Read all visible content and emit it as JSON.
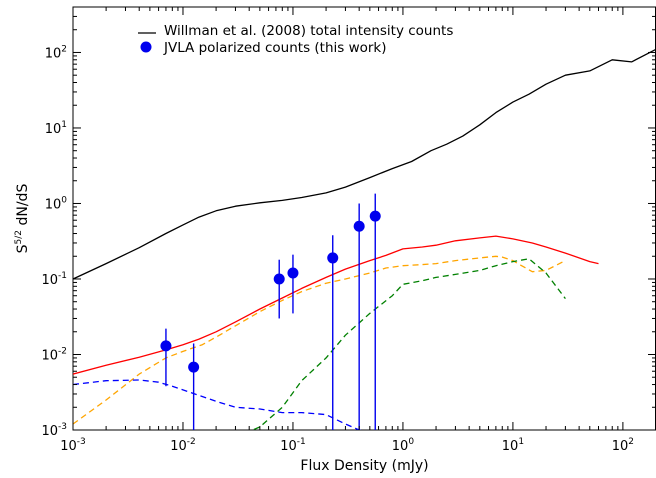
{
  "chart_data": {
    "type": "line",
    "xlabel": "Flux Density (mJy)",
    "ylabel_main": "S",
    "ylabel_sup": "5/2",
    "ylabel_rest": " dN/dS",
    "xscale": "log",
    "yscale": "log",
    "xlim": [
      0.001,
      200
    ],
    "ylim": [
      0.001,
      400
    ],
    "x_ticks": [
      {
        "value": 0.001,
        "mant": "10",
        "exp": "-3"
      },
      {
        "value": 0.01,
        "mant": "10",
        "exp": "-2"
      },
      {
        "value": 0.1,
        "mant": "10",
        "exp": "-1"
      },
      {
        "value": 1,
        "mant": "10",
        "exp": "0"
      },
      {
        "value": 10,
        "mant": "10",
        "exp": "1"
      },
      {
        "value": 100,
        "mant": "10",
        "exp": "2"
      }
    ],
    "y_ticks": [
      {
        "value": 0.001,
        "mant": "10",
        "exp": "-3"
      },
      {
        "value": 0.01,
        "mant": "10",
        "exp": "-2"
      },
      {
        "value": 0.1,
        "mant": "10",
        "exp": "-1"
      },
      {
        "value": 1,
        "mant": "10",
        "exp": "0"
      },
      {
        "value": 10,
        "mant": "10",
        "exp": "1"
      },
      {
        "value": 100,
        "mant": "10",
        "exp": "2"
      }
    ],
    "legend": [
      {
        "label": "Willman et al. (2008) total intensity counts",
        "marker": "line",
        "color": "#000000"
      },
      {
        "label": "JVLA polarized counts (this work)",
        "marker": "circle",
        "color": "#0000ee"
      }
    ],
    "series": [
      {
        "name": "Willman et al. (2008) total intensity counts",
        "color": "#000000",
        "style": "solid",
        "x": [
          0.001,
          0.002,
          0.004,
          0.007,
          0.01,
          0.014,
          0.02,
          0.03,
          0.05,
          0.08,
          0.12,
          0.2,
          0.3,
          0.5,
          0.8,
          1.2,
          1.8,
          2.5,
          3.5,
          5,
          7,
          10,
          14,
          20,
          30,
          50,
          80,
          120,
          200
        ],
        "y": [
          0.1,
          0.16,
          0.26,
          0.4,
          0.52,
          0.66,
          0.8,
          0.92,
          1.02,
          1.1,
          1.2,
          1.38,
          1.65,
          2.2,
          2.9,
          3.6,
          5,
          6.1,
          7.8,
          11,
          16,
          22,
          28,
          38,
          50,
          57,
          80,
          75,
          110
        ]
      },
      {
        "name": "red model",
        "color": "#ff0000",
        "style": "solid",
        "x": [
          0.001,
          0.002,
          0.004,
          0.007,
          0.01,
          0.014,
          0.02,
          0.03,
          0.05,
          0.08,
          0.12,
          0.2,
          0.3,
          0.5,
          0.7,
          1,
          1.5,
          2,
          3,
          5,
          7,
          10,
          15,
          20,
          30,
          50,
          60
        ],
        "y": [
          0.0055,
          0.0072,
          0.0092,
          0.0115,
          0.0135,
          0.016,
          0.02,
          0.027,
          0.04,
          0.056,
          0.075,
          0.105,
          0.135,
          0.175,
          0.205,
          0.25,
          0.265,
          0.28,
          0.32,
          0.35,
          0.37,
          0.34,
          0.3,
          0.265,
          0.22,
          0.17,
          0.16
        ]
      },
      {
        "name": "orange model",
        "color": "#ffa500",
        "style": "dashed",
        "x": [
          0.001,
          0.002,
          0.004,
          0.007,
          0.01,
          0.015,
          0.02,
          0.03,
          0.05,
          0.08,
          0.12,
          0.2,
          0.3,
          0.5,
          0.7,
          1,
          1.5,
          2,
          3,
          5,
          7,
          8,
          10,
          12,
          15,
          20,
          30
        ],
        "y": [
          0.0012,
          0.0025,
          0.0055,
          0.009,
          0.011,
          0.0135,
          0.017,
          0.024,
          0.037,
          0.052,
          0.068,
          0.088,
          0.1,
          0.12,
          0.14,
          0.15,
          0.155,
          0.16,
          0.175,
          0.19,
          0.2,
          0.195,
          0.175,
          0.15,
          0.125,
          0.13,
          0.175
        ]
      },
      {
        "name": "green model",
        "color": "#008000",
        "style": "dashed",
        "x": [
          0.03,
          0.05,
          0.08,
          0.12,
          0.2,
          0.3,
          0.5,
          0.8,
          1,
          1.5,
          2,
          3,
          5,
          7,
          10,
          14,
          20,
          30
        ],
        "y": [
          0.0008,
          0.0011,
          0.002,
          0.0045,
          0.009,
          0.018,
          0.035,
          0.06,
          0.085,
          0.095,
          0.105,
          0.115,
          0.13,
          0.15,
          0.17,
          0.185,
          0.12,
          0.055
        ]
      },
      {
        "name": "blue model",
        "color": "#0000ff",
        "style": "dashed",
        "x": [
          0.001,
          0.002,
          0.004,
          0.006,
          0.008,
          0.012,
          0.02,
          0.03,
          0.05,
          0.08,
          0.12,
          0.2,
          0.3,
          0.4,
          0.5
        ],
        "y": [
          0.004,
          0.0045,
          0.0046,
          0.0043,
          0.0038,
          0.0031,
          0.0024,
          0.002,
          0.0019,
          0.0017,
          0.0017,
          0.0016,
          0.0012,
          0.001,
          0.0009
        ]
      }
    ],
    "points": {
      "name": "JVLA polarized counts (this work)",
      "color": "#0000ee",
      "x": [
        0.007,
        0.0125,
        0.075,
        0.1,
        0.23,
        0.4,
        0.56
      ],
      "y": [
        0.013,
        0.0068,
        0.1,
        0.12,
        0.19,
        0.5,
        0.68
      ],
      "yerr_low": [
        0.0038,
        0.0008,
        0.03,
        0.035,
        0.0005,
        0.0005,
        0.0005
      ],
      "yerr_high": [
        0.022,
        0.014,
        0.18,
        0.21,
        0.38,
        1.0,
        1.35
      ]
    }
  }
}
